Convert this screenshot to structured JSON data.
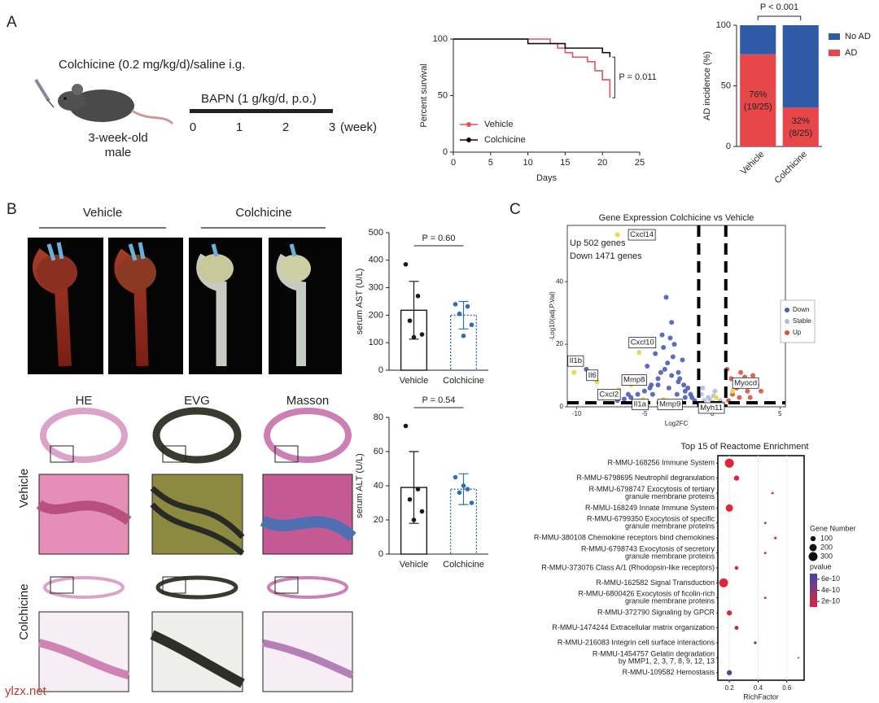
{
  "panel_labels": [
    "A",
    "B",
    "C"
  ],
  "schematic": {
    "treatment": "Colchicine (0.2 mg/kg/d)/saline i.g.",
    "mouse": [
      "3-week-old",
      "male"
    ],
    "bapn": "BAPN (1 g/kg/d, p.o.)",
    "timeline_ticks": [
      "0",
      "1",
      "2",
      "3"
    ],
    "timeline_unit": "(week)"
  },
  "photo_groups": [
    "Vehicle",
    "Colchicine"
  ],
  "stain_columns": [
    "HE",
    "EVG",
    "Masson"
  ],
  "stain_rows": [
    "Vehicle",
    "Colchicine"
  ],
  "watermark": "ylzx.net",
  "chart_data": [
    {
      "type": "line",
      "step": true,
      "x": [
        0,
        10,
        13,
        14,
        15,
        16,
        18,
        19,
        20,
        21
      ],
      "series": [
        {
          "name": "Vehicle",
          "color": "#e0535a",
          "values": [
            100,
            100,
            96,
            92,
            88,
            84,
            80,
            72,
            64,
            48
          ]
        },
        {
          "name": "Colchicine",
          "color": "#111111",
          "values": [
            100,
            96,
            96,
            96,
            92,
            92,
            92,
            92,
            88,
            84
          ]
        }
      ],
      "xlim": [
        0,
        25
      ],
      "xticks": [
        0,
        5,
        10,
        15,
        20,
        25
      ],
      "ylim": [
        0,
        100
      ],
      "yticks": [
        0,
        50,
        100
      ],
      "x_label": "Days",
      "y_label": "Percent survival",
      "annotation": "P = 0.011"
    },
    {
      "type": "bar",
      "stacked": true,
      "categories": [
        "Vehicle",
        "Colchicine"
      ],
      "series": [
        {
          "name": "AD",
          "color": "#e8474a",
          "values": [
            76,
            32
          ],
          "value_labels": [
            "76%",
            "32%"
          ],
          "count_labels": [
            "(19/25)",
            "(8/25)"
          ]
        },
        {
          "name": "No AD",
          "color": "#2e5aa8",
          "values": [
            24,
            68
          ]
        }
      ],
      "ylim": [
        0,
        100
      ],
      "yticks": [
        0,
        50,
        100
      ],
      "y_label": "AD incidence (%)",
      "annotation": "P < 0.001"
    },
    {
      "type": "bar",
      "categories": [
        "Vehicle",
        "Colchicine"
      ],
      "colors": [
        "#1a1a1a",
        "#2f6db5"
      ],
      "values": [
        218,
        200
      ],
      "errors": [
        105,
        50
      ],
      "points": [
        [
          385,
          270,
          180,
          130,
          120
        ],
        [
          240,
          232,
          205,
          165,
          125
        ]
      ],
      "ylim": [
        0,
        500
      ],
      "yticks": [
        0,
        100,
        200,
        300,
        400,
        500
      ],
      "y_label": "serum AST (U/L)",
      "annotation": "P = 0.60"
    },
    {
      "type": "bar",
      "categories": [
        "Vehicle",
        "Colchicine"
      ],
      "colors": [
        "#1a1a1a",
        "#2f6db5"
      ],
      "values": [
        39,
        38
      ],
      "errors": [
        21,
        9
      ],
      "points": [
        [
          75,
          38,
          32,
          25,
          20
        ],
        [
          45,
          38,
          36,
          30,
          40
        ]
      ],
      "ylim": [
        0,
        80
      ],
      "yticks": [
        0,
        20,
        40,
        60,
        80
      ],
      "y_label": "serum ALT (U/L)",
      "annotation": "P = 0.54"
    },
    {
      "type": "scatter",
      "title": "Gene Expression Colchicine vs Vehicle",
      "annotations": [
        "Up 502 genes",
        "Down 1471 genes"
      ],
      "series": [
        {
          "name": "Down",
          "color": "#4b5cb8",
          "x": [
            -1.5,
            -2,
            -2.5,
            -3,
            -3.5,
            -4,
            -4.5,
            -5,
            -5.5,
            -6,
            -6.5,
            -7,
            -2.2,
            -2.8,
            -3.3,
            -3.8,
            -4.2,
            -1.8,
            -2.5,
            -3.1,
            -3.6,
            -4.8,
            -5.2,
            -1.3,
            -2,
            -2.6,
            -3.2,
            -4,
            -4.6,
            -6.2,
            -7.5,
            -9.3,
            -3.4,
            -2.4,
            -3,
            -1.6,
            -2.1,
            -2.9,
            -3.7,
            -4.4
          ],
          "values": [
            3,
            5,
            8,
            10,
            12,
            9,
            7,
            5,
            4,
            3,
            2.5,
            2,
            15,
            20,
            14,
            11,
            17,
            6,
            11,
            22,
            19,
            13,
            8,
            2,
            3,
            4,
            6,
            7,
            6,
            4,
            3,
            12,
            35,
            9,
            27,
            4,
            7,
            16,
            23,
            4
          ]
        },
        {
          "name": "Stable",
          "color": "#b4bbd9",
          "x": [
            -0.9,
            -0.6,
            -0.3,
            0,
            0.3,
            0.6,
            0.8,
            -0.8,
            -0.5,
            0.2,
            -0.2,
            0.5,
            -0.7,
            0.1
          ],
          "values": [
            1,
            2,
            3,
            1.5,
            0.8,
            2,
            1,
            4,
            0.5,
            5,
            2.5,
            1.2,
            6,
            3.5
          ]
        },
        {
          "name": "Up",
          "color": "#d9533b",
          "x": [
            1.2,
            1.5,
            1.8,
            2,
            2.3,
            2.6,
            3,
            3.3,
            1.4,
            2.1,
            2.8,
            3.6,
            1.1,
            2.4
          ],
          "values": [
            2,
            4,
            6,
            3,
            8,
            5,
            10,
            7,
            9,
            11,
            3,
            5,
            12,
            9.5
          ]
        }
      ],
      "labeled": [
        {
          "label": "Cxcl14",
          "x": -7,
          "y": 55
        },
        {
          "label": "Cxcl10",
          "x": -5.4,
          "y": 17.4
        },
        {
          "label": "Il1b",
          "x": -10.2,
          "y": 11
        },
        {
          "label": "Il6",
          "x": -8.5,
          "y": 8
        },
        {
          "label": "Mmp8",
          "x": -6,
          "y": 7
        },
        {
          "label": "Cxcl2",
          "x": -6.9,
          "y": 5.5
        },
        {
          "label": "Il1a",
          "x": -5.1,
          "y": 2.3
        },
        {
          "label": "Mmp9",
          "x": -3.6,
          "y": 2.3
        },
        {
          "label": "Myh11",
          "x": 0.3,
          "y": 3
        },
        {
          "label": "Myocd",
          "x": 1.5,
          "y": 5
        }
      ],
      "vlines": [
        -1,
        1
      ],
      "hline": 1.3,
      "xlim": [
        -10.7,
        5.4
      ],
      "xticks": [
        -10,
        -5,
        0,
        5
      ],
      "ylim": [
        0,
        58
      ],
      "yticks": [
        0,
        20,
        40
      ],
      "x_label": "Log2FC",
      "y_label": "-Log10(adj.P.Val)"
    },
    {
      "type": "dot",
      "title": "Top 15 of Reactome Enrichment",
      "categories": [
        [
          "R-MMU-168256 Immune System"
        ],
        [
          "R-MMU-6798695 Neutrophil degranulation"
        ],
        [
          "R-MMU-6798747 Exocytosis of tertiary",
          "granule membrane proteins"
        ],
        [
          "R-MMU-168249 Innate Immune System"
        ],
        [
          "R-MMU-6799350 Exocytosis of specific",
          "granule membrane proteins"
        ],
        [
          "R-MMU-380108 Chemokine receptors bind chemokines"
        ],
        [
          "R-MMU-6798743 Exocytosis of secretory",
          "granule membrane proteins"
        ],
        [
          "R-MMU-373076 Class A/1 (Rhodopsin-like receptors)"
        ],
        [
          "R-MMU-162582 Signal Transduction"
        ],
        [
          "R-MMU-6800426 Exocytosis of ficolin-rich",
          "granule membrane proteins"
        ],
        [
          "R-MMU-372790 Signaling by GPCR"
        ],
        [
          "R-MMU-1474244 Extracellular matrix organization"
        ],
        [
          "R-MMU-216083 Integrin cell surface interactions"
        ],
        [
          "R-MMU-1454757 Gelatin degradation",
          "by MMP1, 2, 3, 7, 8, 9, 12, 13"
        ],
        [
          "R-MMU-109582 Hemostasis"
        ]
      ],
      "values": [
        0.2,
        0.25,
        0.5,
        0.2,
        0.45,
        0.52,
        0.45,
        0.25,
        0.16,
        0.45,
        0.2,
        0.25,
        0.38,
        0.68,
        0.2
      ],
      "sizes": [
        300,
        100,
        20,
        200,
        20,
        25,
        20,
        50,
        300,
        20,
        100,
        60,
        30,
        10,
        100
      ],
      "pvalues": [
        1e-10,
        1e-10,
        1e-10,
        1e-10,
        1e-10,
        1e-10,
        1e-10,
        1e-10,
        1e-10,
        1e-10,
        1e-10,
        2e-10,
        4e-10,
        6.5e-10,
        6e-10
      ],
      "xlim": [
        0.12,
        0.72
      ],
      "xticks": [
        0.2,
        0.4,
        0.6
      ],
      "x_label": "RichFactor",
      "size_title": "Gene Number",
      "size_legend": [
        100,
        200,
        300
      ],
      "color_title": "pvalue",
      "color_ticks": [
        6e-10,
        4e-10,
        2e-10
      ],
      "clim": [
        1e-10,
        7e-10
      ]
    }
  ]
}
